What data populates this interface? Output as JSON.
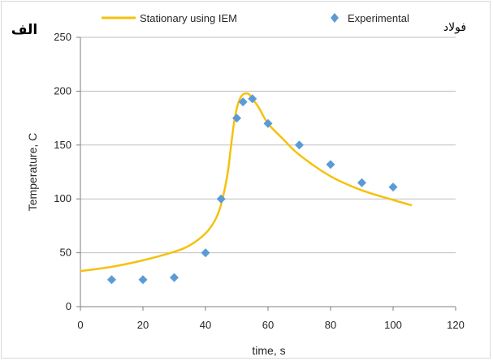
{
  "chart_data": {
    "type": "line",
    "title": "",
    "xlabel": "time, s",
    "ylabel": "Temperature, C",
    "xlim": [
      0,
      120
    ],
    "ylim": [
      0,
      250
    ],
    "xticks": [
      0,
      20,
      40,
      60,
      80,
      100,
      120
    ],
    "yticks": [
      0,
      50,
      100,
      150,
      200,
      250
    ],
    "grid": "horizontal",
    "legend_position": "top",
    "panel_label": "الف",
    "material_label": "فولاد",
    "series": [
      {
        "name": "Stationary using IEM",
        "type": "line",
        "color": "#f5c10e",
        "x": [
          0,
          10,
          20,
          30,
          35,
          40,
          43,
          45,
          47,
          48,
          49,
          50,
          51,
          52,
          53,
          54,
          55,
          57,
          60,
          65,
          70,
          80,
          90,
          100,
          106
        ],
        "y": [
          33,
          37,
          43,
          51,
          57,
          68,
          80,
          95,
          122,
          145,
          168,
          184,
          193,
          197,
          198,
          197,
          193,
          185,
          170,
          155,
          141,
          121,
          108,
          99,
          94
        ]
      },
      {
        "name": "Experimental",
        "type": "scatter",
        "marker": "diamond",
        "color": "#5b9bd5",
        "x": [
          10,
          20,
          30,
          40,
          45,
          50,
          52,
          55,
          60,
          70,
          80,
          90,
          100
        ],
        "y": [
          25,
          25,
          27,
          50,
          100,
          175,
          190,
          193,
          170,
          150,
          132,
          115,
          111
        ]
      }
    ]
  }
}
